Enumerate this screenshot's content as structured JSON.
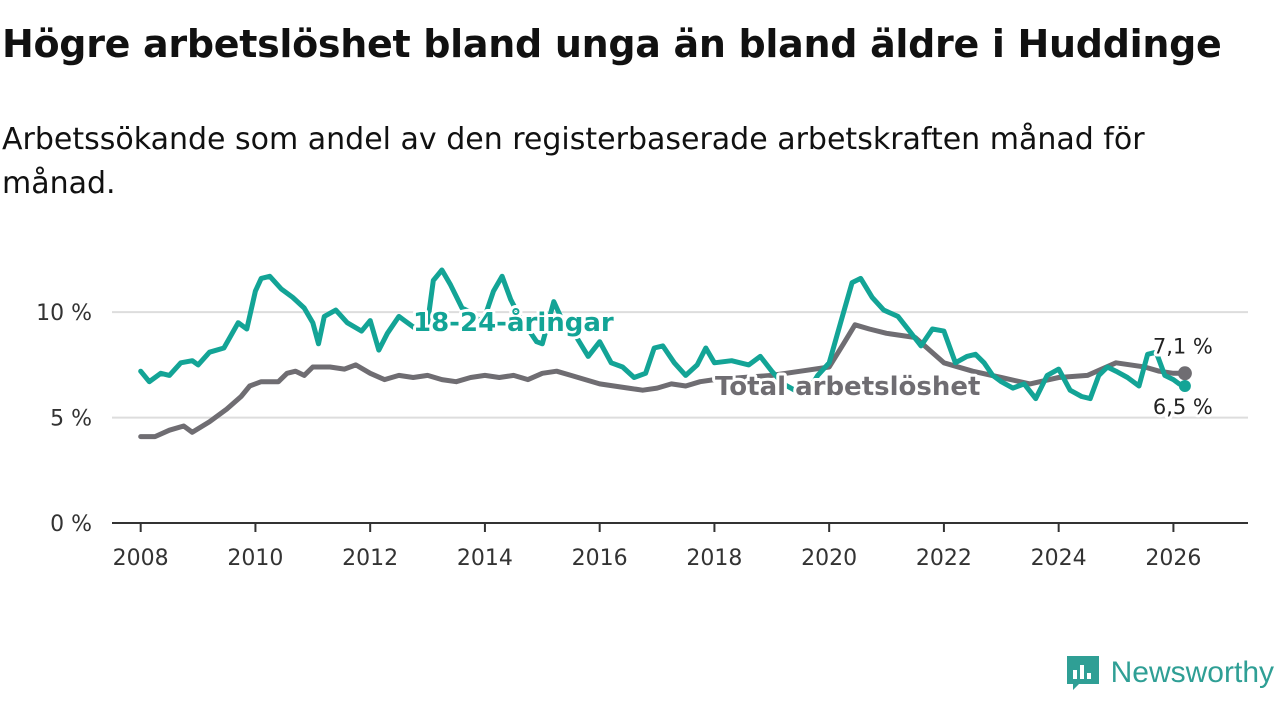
{
  "header": {
    "title": "Högre arbetslöshet bland unga än bland äldre i Huddinge",
    "subtitle": "Arbetssökande som andel av den registerbaserade arbetskraften månad för månad."
  },
  "brand": {
    "name": "Newsworthy",
    "color": "#2f9f95"
  },
  "chart_data": {
    "type": "line",
    "title": "Högre arbetslöshet bland unga än bland äldre i Huddinge",
    "ylim": [
      0,
      12
    ],
    "yticks": [
      0,
      5,
      10
    ],
    "ytick_labels": [
      "0 %",
      "5 %",
      "10 %"
    ],
    "xlim": [
      2007.5,
      2027.3
    ],
    "xticks": [
      2008,
      2010,
      2012,
      2014,
      2016,
      2018,
      2020,
      2022,
      2024,
      2026
    ],
    "xtick_labels": [
      "2008",
      "2010",
      "2012",
      "2014",
      "2016",
      "2018",
      "2020",
      "2022",
      "2024",
      "2026"
    ],
    "series": [
      {
        "name": "Total arbetslöshet",
        "label": "Total arbetslöshet",
        "color": "#6f6d72",
        "end_label": "7,1 %",
        "points": [
          [
            2008.0,
            4.1
          ],
          [
            2008.25,
            4.1
          ],
          [
            2008.5,
            4.4
          ],
          [
            2008.75,
            4.6
          ],
          [
            2008.9,
            4.3
          ],
          [
            2009.2,
            4.8
          ],
          [
            2009.5,
            5.4
          ],
          [
            2009.75,
            6.0
          ],
          [
            2009.9,
            6.5
          ],
          [
            2010.1,
            6.7
          ],
          [
            2010.4,
            6.7
          ],
          [
            2010.55,
            7.1
          ],
          [
            2010.7,
            7.2
          ],
          [
            2010.85,
            7.0
          ],
          [
            2011.0,
            7.4
          ],
          [
            2011.3,
            7.4
          ],
          [
            2011.55,
            7.3
          ],
          [
            2011.75,
            7.5
          ],
          [
            2012.0,
            7.1
          ],
          [
            2012.25,
            6.8
          ],
          [
            2012.5,
            7.0
          ],
          [
            2012.75,
            6.9
          ],
          [
            2013.0,
            7.0
          ],
          [
            2013.25,
            6.8
          ],
          [
            2013.5,
            6.7
          ],
          [
            2013.75,
            6.9
          ],
          [
            2014.0,
            7.0
          ],
          [
            2014.25,
            6.9
          ],
          [
            2014.5,
            7.0
          ],
          [
            2014.75,
            6.8
          ],
          [
            2015.0,
            7.1
          ],
          [
            2015.25,
            7.2
          ],
          [
            2015.5,
            7.0
          ],
          [
            2015.75,
            6.8
          ],
          [
            2016.0,
            6.6
          ],
          [
            2016.25,
            6.5
          ],
          [
            2016.5,
            6.4
          ],
          [
            2016.75,
            6.3
          ],
          [
            2017.0,
            6.4
          ],
          [
            2017.25,
            6.6
          ],
          [
            2017.5,
            6.5
          ],
          [
            2017.75,
            6.7
          ],
          [
            2018.0,
            6.8
          ],
          [
            2018.5,
            6.9
          ],
          [
            2019.0,
            7.0
          ],
          [
            2019.5,
            7.2
          ],
          [
            2020.0,
            7.4
          ],
          [
            2020.25,
            8.5
          ],
          [
            2020.45,
            9.4
          ],
          [
            2020.7,
            9.2
          ],
          [
            2021.0,
            9.0
          ],
          [
            2021.5,
            8.8
          ],
          [
            2022.0,
            7.6
          ],
          [
            2022.5,
            7.2
          ],
          [
            2023.0,
            6.9
          ],
          [
            2023.5,
            6.6
          ],
          [
            2024.0,
            6.9
          ],
          [
            2024.5,
            7.0
          ],
          [
            2025.0,
            7.6
          ],
          [
            2025.5,
            7.4
          ],
          [
            2025.75,
            7.2
          ],
          [
            2026.0,
            7.1
          ],
          [
            2026.2,
            7.1
          ]
        ]
      },
      {
        "name": "18-24-åringar",
        "label": "18-24-åringar",
        "color": "#13a496",
        "end_label": "6,5 %",
        "points": [
          [
            2008.0,
            7.2
          ],
          [
            2008.15,
            6.7
          ],
          [
            2008.35,
            7.1
          ],
          [
            2008.5,
            7.0
          ],
          [
            2008.7,
            7.6
          ],
          [
            2008.9,
            7.7
          ],
          [
            2009.0,
            7.5
          ],
          [
            2009.2,
            8.1
          ],
          [
            2009.45,
            8.3
          ],
          [
            2009.7,
            9.5
          ],
          [
            2009.85,
            9.2
          ],
          [
            2010.0,
            11.0
          ],
          [
            2010.1,
            11.6
          ],
          [
            2010.25,
            11.7
          ],
          [
            2010.45,
            11.1
          ],
          [
            2010.65,
            10.7
          ],
          [
            2010.85,
            10.2
          ],
          [
            2011.0,
            9.5
          ],
          [
            2011.1,
            8.5
          ],
          [
            2011.2,
            9.8
          ],
          [
            2011.4,
            10.1
          ],
          [
            2011.6,
            9.5
          ],
          [
            2011.85,
            9.1
          ],
          [
            2012.0,
            9.6
          ],
          [
            2012.15,
            8.2
          ],
          [
            2012.3,
            9.0
          ],
          [
            2012.5,
            9.8
          ],
          [
            2012.6,
            9.6
          ],
          [
            2012.75,
            9.3
          ],
          [
            2012.85,
            9.1
          ],
          [
            2013.0,
            9.5
          ],
          [
            2013.1,
            11.5
          ],
          [
            2013.25,
            12.0
          ],
          [
            2013.4,
            11.3
          ],
          [
            2013.6,
            10.2
          ],
          [
            2013.75,
            10.0
          ],
          [
            2013.9,
            9.6
          ],
          [
            2014.0,
            9.8
          ],
          [
            2014.15,
            11.0
          ],
          [
            2014.3,
            11.7
          ],
          [
            2014.45,
            10.6
          ],
          [
            2014.6,
            9.8
          ],
          [
            2014.75,
            9.2
          ],
          [
            2014.9,
            8.6
          ],
          [
            2015.0,
            8.5
          ],
          [
            2015.2,
            10.5
          ],
          [
            2015.4,
            9.3
          ],
          [
            2015.6,
            8.8
          ],
          [
            2015.8,
            7.9
          ],
          [
            2016.0,
            8.6
          ],
          [
            2016.2,
            7.6
          ],
          [
            2016.4,
            7.4
          ],
          [
            2016.6,
            6.9
          ],
          [
            2016.8,
            7.1
          ],
          [
            2016.95,
            8.3
          ],
          [
            2017.1,
            8.4
          ],
          [
            2017.3,
            7.6
          ],
          [
            2017.5,
            7.0
          ],
          [
            2017.7,
            7.5
          ],
          [
            2017.85,
            8.3
          ],
          [
            2018.0,
            7.6
          ],
          [
            2018.3,
            7.7
          ],
          [
            2018.6,
            7.5
          ],
          [
            2018.8,
            7.9
          ],
          [
            2019.0,
            7.2
          ],
          [
            2019.2,
            6.6
          ],
          [
            2019.4,
            6.3
          ],
          [
            2019.6,
            6.1
          ],
          [
            2019.8,
            7.0
          ],
          [
            2020.0,
            7.6
          ],
          [
            2020.2,
            9.5
          ],
          [
            2020.4,
            11.4
          ],
          [
            2020.55,
            11.6
          ],
          [
            2020.75,
            10.7
          ],
          [
            2020.95,
            10.1
          ],
          [
            2021.2,
            9.8
          ],
          [
            2021.4,
            9.1
          ],
          [
            2021.6,
            8.4
          ],
          [
            2021.8,
            9.2
          ],
          [
            2022.0,
            9.1
          ],
          [
            2022.2,
            7.6
          ],
          [
            2022.4,
            7.9
          ],
          [
            2022.55,
            8.0
          ],
          [
            2022.7,
            7.6
          ],
          [
            2022.85,
            7.0
          ],
          [
            2023.0,
            6.7
          ],
          [
            2023.2,
            6.4
          ],
          [
            2023.4,
            6.6
          ],
          [
            2023.6,
            5.9
          ],
          [
            2023.8,
            7.0
          ],
          [
            2024.0,
            7.3
          ],
          [
            2024.2,
            6.3
          ],
          [
            2024.4,
            6.0
          ],
          [
            2024.55,
            5.9
          ],
          [
            2024.7,
            7.0
          ],
          [
            2024.85,
            7.4
          ],
          [
            2025.0,
            7.2
          ],
          [
            2025.2,
            6.9
          ],
          [
            2025.4,
            6.5
          ],
          [
            2025.55,
            8.0
          ],
          [
            2025.7,
            8.1
          ],
          [
            2025.85,
            7.0
          ],
          [
            2026.0,
            6.8
          ],
          [
            2026.1,
            6.6
          ],
          [
            2026.2,
            6.5
          ]
        ]
      }
    ]
  }
}
